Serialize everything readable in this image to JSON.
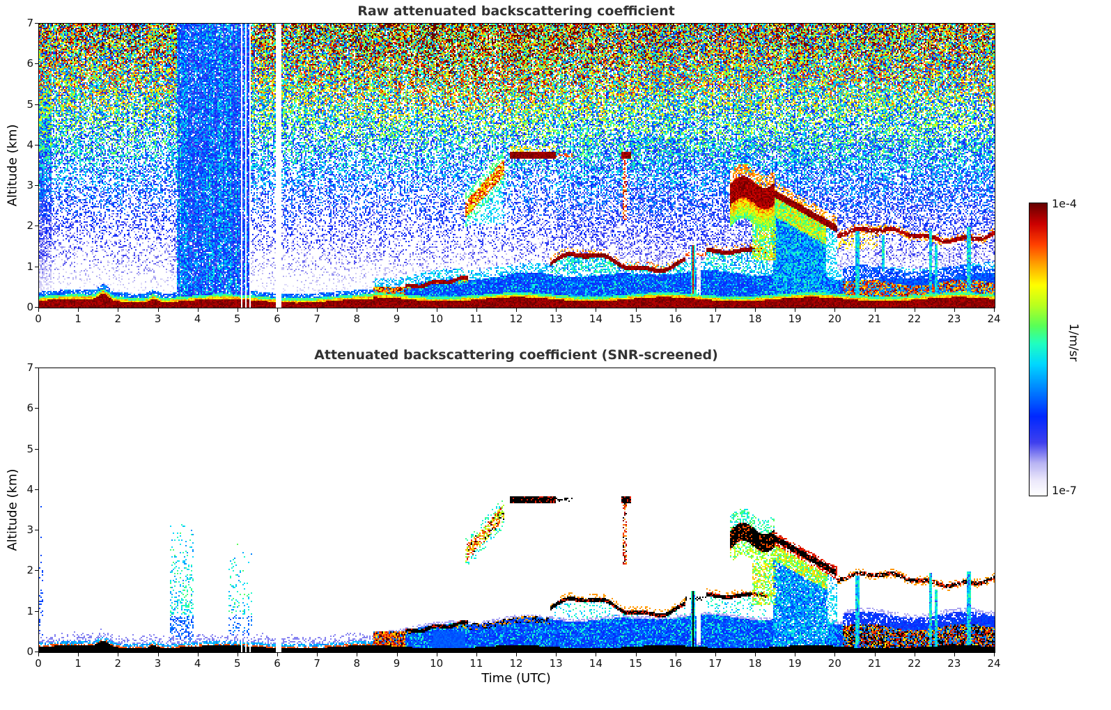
{
  "figure": {
    "background": "#ffffff",
    "title_color": "#333333",
    "panels": [
      {
        "id": "raw",
        "title": "Raw attenuated backscattering coefficient",
        "ylabel": "Altitude (km)",
        "xlabel": "",
        "x_ticks": [
          0,
          1,
          2,
          3,
          4,
          5,
          6,
          7,
          8,
          9,
          10,
          11,
          12,
          13,
          14,
          15,
          16,
          17,
          18,
          19,
          20,
          21,
          22,
          23,
          24
        ],
        "y_ticks": [
          0,
          1,
          2,
          3,
          4,
          5,
          6,
          7
        ]
      },
      {
        "id": "screened",
        "title": "Attenuated backscattering coefficient (SNR-screened)",
        "ylabel": "Altitude (km)",
        "xlabel": "Time (UTC)",
        "x_ticks": [
          0,
          1,
          2,
          3,
          4,
          5,
          6,
          7,
          8,
          9,
          10,
          11,
          12,
          13,
          14,
          15,
          16,
          17,
          18,
          19,
          20,
          21,
          22,
          23,
          24
        ],
        "y_ticks": [
          0,
          1,
          2,
          3,
          4,
          5,
          6,
          7
        ]
      }
    ],
    "colorbar": {
      "top_tick": "1e-4",
      "bottom_tick": "1e-7",
      "label": "1/m/sr"
    }
  },
  "chart_data": [
    {
      "type": "heatmap",
      "title": "Raw attenuated backscattering coefficient",
      "xlabel": "Time (UTC)",
      "ylabel": "Altitude (km)",
      "x_range_hours": [
        0,
        24
      ],
      "y_range_km": [
        0,
        7
      ],
      "value_units": "1/m/sr",
      "value_scale": "log10",
      "value_range": [
        1e-07,
        0.0001
      ],
      "colormap": "jet-like: white -> pale blue -> blue -> cyan -> green -> yellow -> orange -> red -> dark red",
      "features": [
        {
          "name": "surface-aerosol-layer",
          "time_utc": [
            0,
            24
          ],
          "altitude_km": [
            0,
            0.3
          ],
          "description": "Strong near-surface layer ~1e-4 (dark red) all day, thin bumps near 1.6 and 2.9 UTC"
        },
        {
          "name": "range-noise-speckle",
          "time_utc": [
            0,
            24
          ],
          "altitude_km": [
            0.5,
            7
          ],
          "description": "Raw-signal noise speckle whose amplitude grows with altitude: white/blue low, cyan/green mid, yellow/orange/red near 7 km"
        },
        {
          "name": "attenuated-columns",
          "time_utc": [
            3.45,
            5.33
          ],
          "altitude_km": [
            0.3,
            7
          ],
          "description": "Blue attenuated columns (precip/fog period) through full depth"
        },
        {
          "name": "data-gap",
          "time_utc": [
            5.96,
            6.09
          ],
          "altitude_km": [
            0,
            7
          ],
          "description": "White vertical data gap near 06 UTC plus thin gaps 5.0-5.3 UTC"
        },
        {
          "name": "boundary-layer-growth",
          "time_utc": [
            8.4,
            10.78
          ],
          "altitude_km": [
            0.3,
            0.8
          ],
          "description": "Rising dark-red boundary layer top from ~0.5 to ~0.75 km"
        },
        {
          "name": "sloped-virga-band",
          "time_utc": [
            10.7,
            11.7
          ],
          "altitude_km": [
            2.4,
            3.5
          ],
          "description": "Sloping orange/red cloud-virga band rising with time"
        },
        {
          "name": "cloud-base-3.75km",
          "time_utc": [
            11.82,
            12.98
          ],
          "altitude_km": [
            3.66,
            3.86
          ],
          "description": "Dark red cloud base line near 3.75 km; second short one 14.62-14.86 UTC with red streak below at 14.7"
        },
        {
          "name": "elevated-layer",
          "time_utc": [
            12.85,
            18.3
          ],
          "altitude_km": [
            1.0,
            1.5
          ],
          "description": "Wavy dark red elevated aerosol/cloud layer with cyan speckle below"
        },
        {
          "name": "precip-column",
          "time_utc": [
            16.3,
            16.55
          ],
          "altitude_km": [
            0,
            1.6
          ],
          "description": "Narrow precipitation column reaching ground"
        },
        {
          "name": "cloud-with-precip",
          "time_utc": [
            17.35,
            18.5
          ],
          "altitude_km": [
            2.3,
            3.3
          ],
          "description": "Dark red cloud with heavy rainbow virga below"
        },
        {
          "name": "descending-layer-with-rain",
          "time_utc": [
            18.45,
            20.05
          ],
          "altitude_km": [
            1.9,
            2.9
          ],
          "description": "Layer descending 2.8 -> 1.9 km, rain streaks to ground 18.5-19.8 UTC"
        },
        {
          "name": "late-layer-1.8km",
          "time_utc": [
            20.05,
            24
          ],
          "altitude_km": [
            1.6,
            2.0
          ],
          "description": "Wavy dark red layer near 1.8 km until 24 UTC"
        },
        {
          "name": "late-mixed-low-layer",
          "time_utc": [
            20.2,
            24
          ],
          "altitude_km": [
            0,
            0.9
          ],
          "description": "Mottled red/orange aerosol below ~0.7 km with cyan drizzle columns at 20.55, 22.4, 22.5, 23.35 UTC"
        }
      ]
    },
    {
      "type": "heatmap",
      "title": "Attenuated backscattering coefficient (SNR-screened)",
      "xlabel": "Time (UTC)",
      "ylabel": "Altitude (km)",
      "x_range_hours": [
        0,
        24
      ],
      "y_range_km": [
        0,
        7
      ],
      "value_units": "1/m/sr",
      "value_scale": "log10",
      "value_range": [
        1e-07,
        0.0001
      ],
      "colormap": "same jet-like colormap; saturated/cloud returns rendered black; noise screened to white",
      "features": [
        {
          "name": "surface-aerosol-layer",
          "time_utc": [
            0,
            24
          ],
          "altitude_km": [
            0,
            0.25
          ],
          "description": "Black (saturated) surface layer all day with pale blue halo above"
        },
        {
          "name": "screened-background",
          "time_utc": [
            0,
            24
          ],
          "altitude_km": [
            1,
            7
          ],
          "description": "Background mostly white (noise removed)"
        },
        {
          "name": "residual-speckle-columns",
          "time_utc": [
            3.3,
            5.35
          ],
          "altitude_km": [
            0,
            3.3
          ],
          "description": "Sparse cyan/green residual speckle columns"
        },
        {
          "name": "data-gap",
          "time_utc": [
            5.96,
            6.09
          ],
          "altitude_km": [
            0,
            7
          ],
          "description": "White data gap near 06 UTC"
        },
        {
          "name": "blue-mixed-layer",
          "time_utc": [
            8.4,
            24
          ],
          "altitude_km": [
            0,
            1.0
          ],
          "description": "Royal-blue aerosol layer deepening after 08:30 UTC with cyan speckle"
        },
        {
          "name": "boundary-layer-top-line",
          "time_utc": [
            9.2,
            12.85
          ],
          "altitude_km": [
            0.4,
            0.8
          ],
          "description": "Black wavy line at boundary layer top"
        },
        {
          "name": "sloped-virga-band",
          "time_utc": [
            10.7,
            11.7
          ],
          "altitude_km": [
            2.4,
            3.5
          ],
          "description": "Yellow/orange/red sloping band with few black pixels"
        },
        {
          "name": "cloud-base-3.75km",
          "time_utc": [
            11.82,
            12.98
          ],
          "altitude_km": [
            3.66,
            3.86
          ],
          "description": "Black cloud-base dashes near 3.75 km; short one 14.62-14.86 UTC"
        },
        {
          "name": "elevated-layer",
          "time_utc": [
            12.85,
            18.3
          ],
          "altitude_km": [
            1.0,
            1.5
          ],
          "description": "Black wavy elevated layer with orange/cyan fringe"
        },
        {
          "name": "precip-column",
          "time_utc": [
            16.3,
            16.55
          ],
          "altitude_km": [
            0,
            1.5
          ],
          "description": "Cyan precipitation column with black core"
        },
        {
          "name": "cloud-with-precip",
          "time_utc": [
            17.35,
            18.5
          ],
          "altitude_km": [
            2.3,
            3.3
          ],
          "description": "Black cloud lumps with colored virga below"
        },
        {
          "name": "descending-layer-with-rain",
          "time_utc": [
            18.45,
            20.05
          ],
          "altitude_km": [
            1.9,
            2.9
          ],
          "description": "Black descending layer, rain streaks (cyan/green/yellow) to ground 18.5-19.8 UTC"
        },
        {
          "name": "late-layer-1.8km",
          "time_utc": [
            20.05,
            24
          ],
          "altitude_km": [
            1.6,
            2.0
          ],
          "description": "Black/red wavy layer near 1.8 km"
        },
        {
          "name": "late-mixed-low-layer",
          "time_utc": [
            20.2,
            24
          ],
          "altitude_km": [
            0,
            0.9
          ],
          "description": "Black/red mottled layer below ~0.7 km, blue above, cyan drizzle columns"
        }
      ]
    }
  ],
  "render": {
    "colormap_stops": [
      [
        0.0,
        255,
        255,
        255
      ],
      [
        0.05,
        236,
        233,
        251
      ],
      [
        0.11,
        185,
        180,
        243
      ],
      [
        0.18,
        64,
        64,
        238
      ],
      [
        0.27,
        0,
        40,
        255
      ],
      [
        0.36,
        0,
        128,
        255
      ],
      [
        0.45,
        0,
        216,
        255
      ],
      [
        0.52,
        32,
        255,
        192
      ],
      [
        0.58,
        88,
        255,
        88
      ],
      [
        0.65,
        184,
        255,
        32
      ],
      [
        0.72,
        255,
        255,
        0
      ],
      [
        0.79,
        255,
        165,
        0
      ],
      [
        0.86,
        255,
        64,
        0
      ],
      [
        0.93,
        204,
        0,
        0
      ],
      [
        1.0,
        102,
        0,
        0
      ]
    ],
    "gaps": [
      [
        5.96,
        6.09
      ]
    ],
    "thin_gaps": [
      [
        4.99,
        5.02
      ],
      [
        5.09,
        5.12
      ],
      [
        5.19,
        5.22
      ],
      [
        5.3,
        5.33
      ]
    ],
    "stripe": [
      3.45,
      5.33
    ],
    "cloud1": {
      "t": [
        11.82,
        12.98
      ],
      "z": [
        3.66,
        3.86
      ]
    },
    "cloud2": {
      "t": [
        14.62,
        14.86
      ],
      "z": [
        3.68,
        3.84
      ]
    },
    "streak": {
      "t": [
        14.67,
        14.77
      ],
      "z": [
        2.15,
        3.66
      ]
    },
    "diag": {
      "t": [
        10.72,
        11.68
      ],
      "z0": 2.42,
      "slope": 1.08
    },
    "bigcloud": {
      "t": [
        17.35,
        18.48
      ],
      "zc": 2.78
    },
    "descend": {
      "t": [
        18.45,
        20.05
      ],
      "z0": 2.82,
      "slope": 0.55
    },
    "lateline": {
      "t": [
        20.05,
        24
      ],
      "z": 1.8
    },
    "segA": {
      "t": [
        9.2,
        10.78
      ],
      "z0": 0.5,
      "slope": 0.145
    },
    "segB": {
      "t": [
        12.85,
        16.25
      ],
      "z": 1.12
    },
    "segC": {
      "t": [
        16.75,
        18.3
      ],
      "z": 1.4
    },
    "blob": {
      "t": [
        8.4,
        9.2
      ],
      "ztop": 0.5
    },
    "lateband": {
      "t": [
        20.2,
        24
      ],
      "ztop": 0.62
    },
    "columns_top": [
      {
        "tc": 16.42,
        "w": 0.12,
        "z0": 0,
        "z1": 1.55,
        "core": true
      },
      {
        "tc": 20.55,
        "w": 0.09,
        "z0": 0,
        "z1": 1.9,
        "core": false
      },
      {
        "tc": 21.2,
        "w": 0.06,
        "z0": 0.9,
        "z1": 1.8,
        "core": false
      },
      {
        "tc": 22.38,
        "w": 0.08,
        "z0": 0,
        "z1": 1.95,
        "core": false
      },
      {
        "tc": 22.52,
        "w": 0.06,
        "z0": 0,
        "z1": 1.55,
        "core": false
      },
      {
        "tc": 23.35,
        "w": 0.08,
        "z0": 0,
        "z1": 2.0,
        "core": false
      }
    ],
    "columns_bottom": [
      {
        "tc": 16.42,
        "w": 0.12,
        "z0": 0,
        "z1": 1.5,
        "core": true
      },
      {
        "tc": 20.55,
        "w": 0.09,
        "z0": 0,
        "z1": 1.9,
        "core": false
      },
      {
        "tc": 22.38,
        "w": 0.08,
        "z0": 0,
        "z1": 1.95,
        "core": false
      },
      {
        "tc": 22.52,
        "w": 0.06,
        "z0": 0,
        "z1": 1.55,
        "core": false
      },
      {
        "tc": 23.35,
        "w": 0.08,
        "z0": 0,
        "z1": 2.0,
        "core": false
      }
    ],
    "speckle_cols": [
      {
        "t": [
          3.3,
          3.9
        ],
        "ztop": 3.25,
        "p": 0.5
      },
      {
        "t": [
          4.75,
          5.35
        ],
        "ztop": 2.75,
        "p": 0.3
      }
    ]
  }
}
